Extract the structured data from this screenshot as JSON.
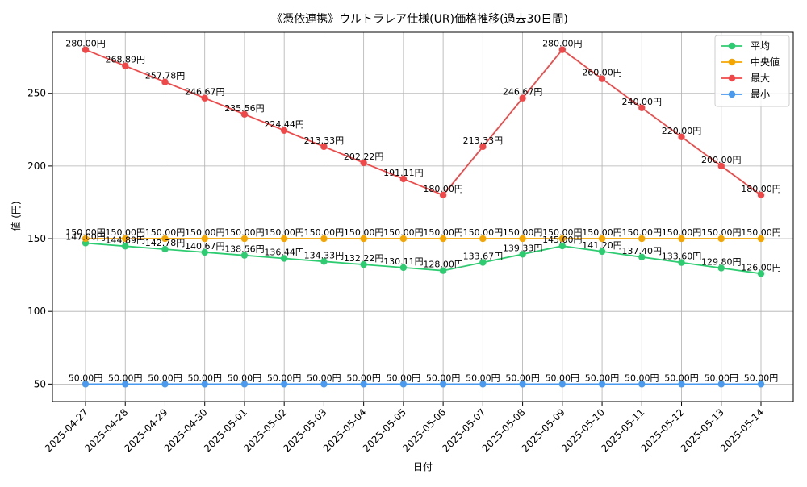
{
  "chart_data": {
    "type": "line",
    "title": "《憑依連携》ウルトラレア仕様(UR)価格推移(過去30日間)",
    "xlabel": "日付",
    "ylabel": "値 (円)",
    "ylim": [
      38,
      292
    ],
    "yticks": [
      50,
      100,
      150,
      200,
      250
    ],
    "grid": true,
    "legend_position": "top-right",
    "value_suffix": "円",
    "categories": [
      "2025-04-27",
      "2025-04-28",
      "2025-04-29",
      "2025-04-30",
      "2025-05-01",
      "2025-05-02",
      "2025-05-03",
      "2025-05-04",
      "2025-05-05",
      "2025-05-06",
      "2025-05-07",
      "2025-05-08",
      "2025-05-09",
      "2025-05-10",
      "2025-05-11",
      "2025-05-12",
      "2025-05-13",
      "2025-05-14"
    ],
    "series": [
      {
        "name": "平均",
        "color": "#2ecc71",
        "values": [
          147.0,
          144.89,
          142.78,
          140.67,
          138.56,
          136.44,
          134.33,
          132.22,
          130.11,
          128.0,
          133.67,
          139.33,
          145.0,
          141.2,
          137.4,
          133.6,
          129.8,
          126.0
        ]
      },
      {
        "name": "中央値",
        "color": "#f5a500",
        "values": [
          150.0,
          150.0,
          150.0,
          150.0,
          150.0,
          150.0,
          150.0,
          150.0,
          150.0,
          150.0,
          150.0,
          150.0,
          150.0,
          150.0,
          150.0,
          150.0,
          150.0,
          150.0
        ]
      },
      {
        "name": "最大",
        "color": "#f04848",
        "values": [
          280.0,
          268.89,
          257.78,
          246.67,
          235.56,
          224.44,
          213.33,
          202.22,
          191.11,
          180.0,
          213.33,
          246.67,
          280.0,
          260.0,
          240.0,
          220.0,
          200.0,
          180.0
        ]
      },
      {
        "name": "最小",
        "color": "#4a9af0",
        "values": [
          50.0,
          50.0,
          50.0,
          50.0,
          50.0,
          50.0,
          50.0,
          50.0,
          50.0,
          50.0,
          50.0,
          50.0,
          50.0,
          50.0,
          50.0,
          50.0,
          50.0,
          50.0
        ]
      }
    ]
  }
}
